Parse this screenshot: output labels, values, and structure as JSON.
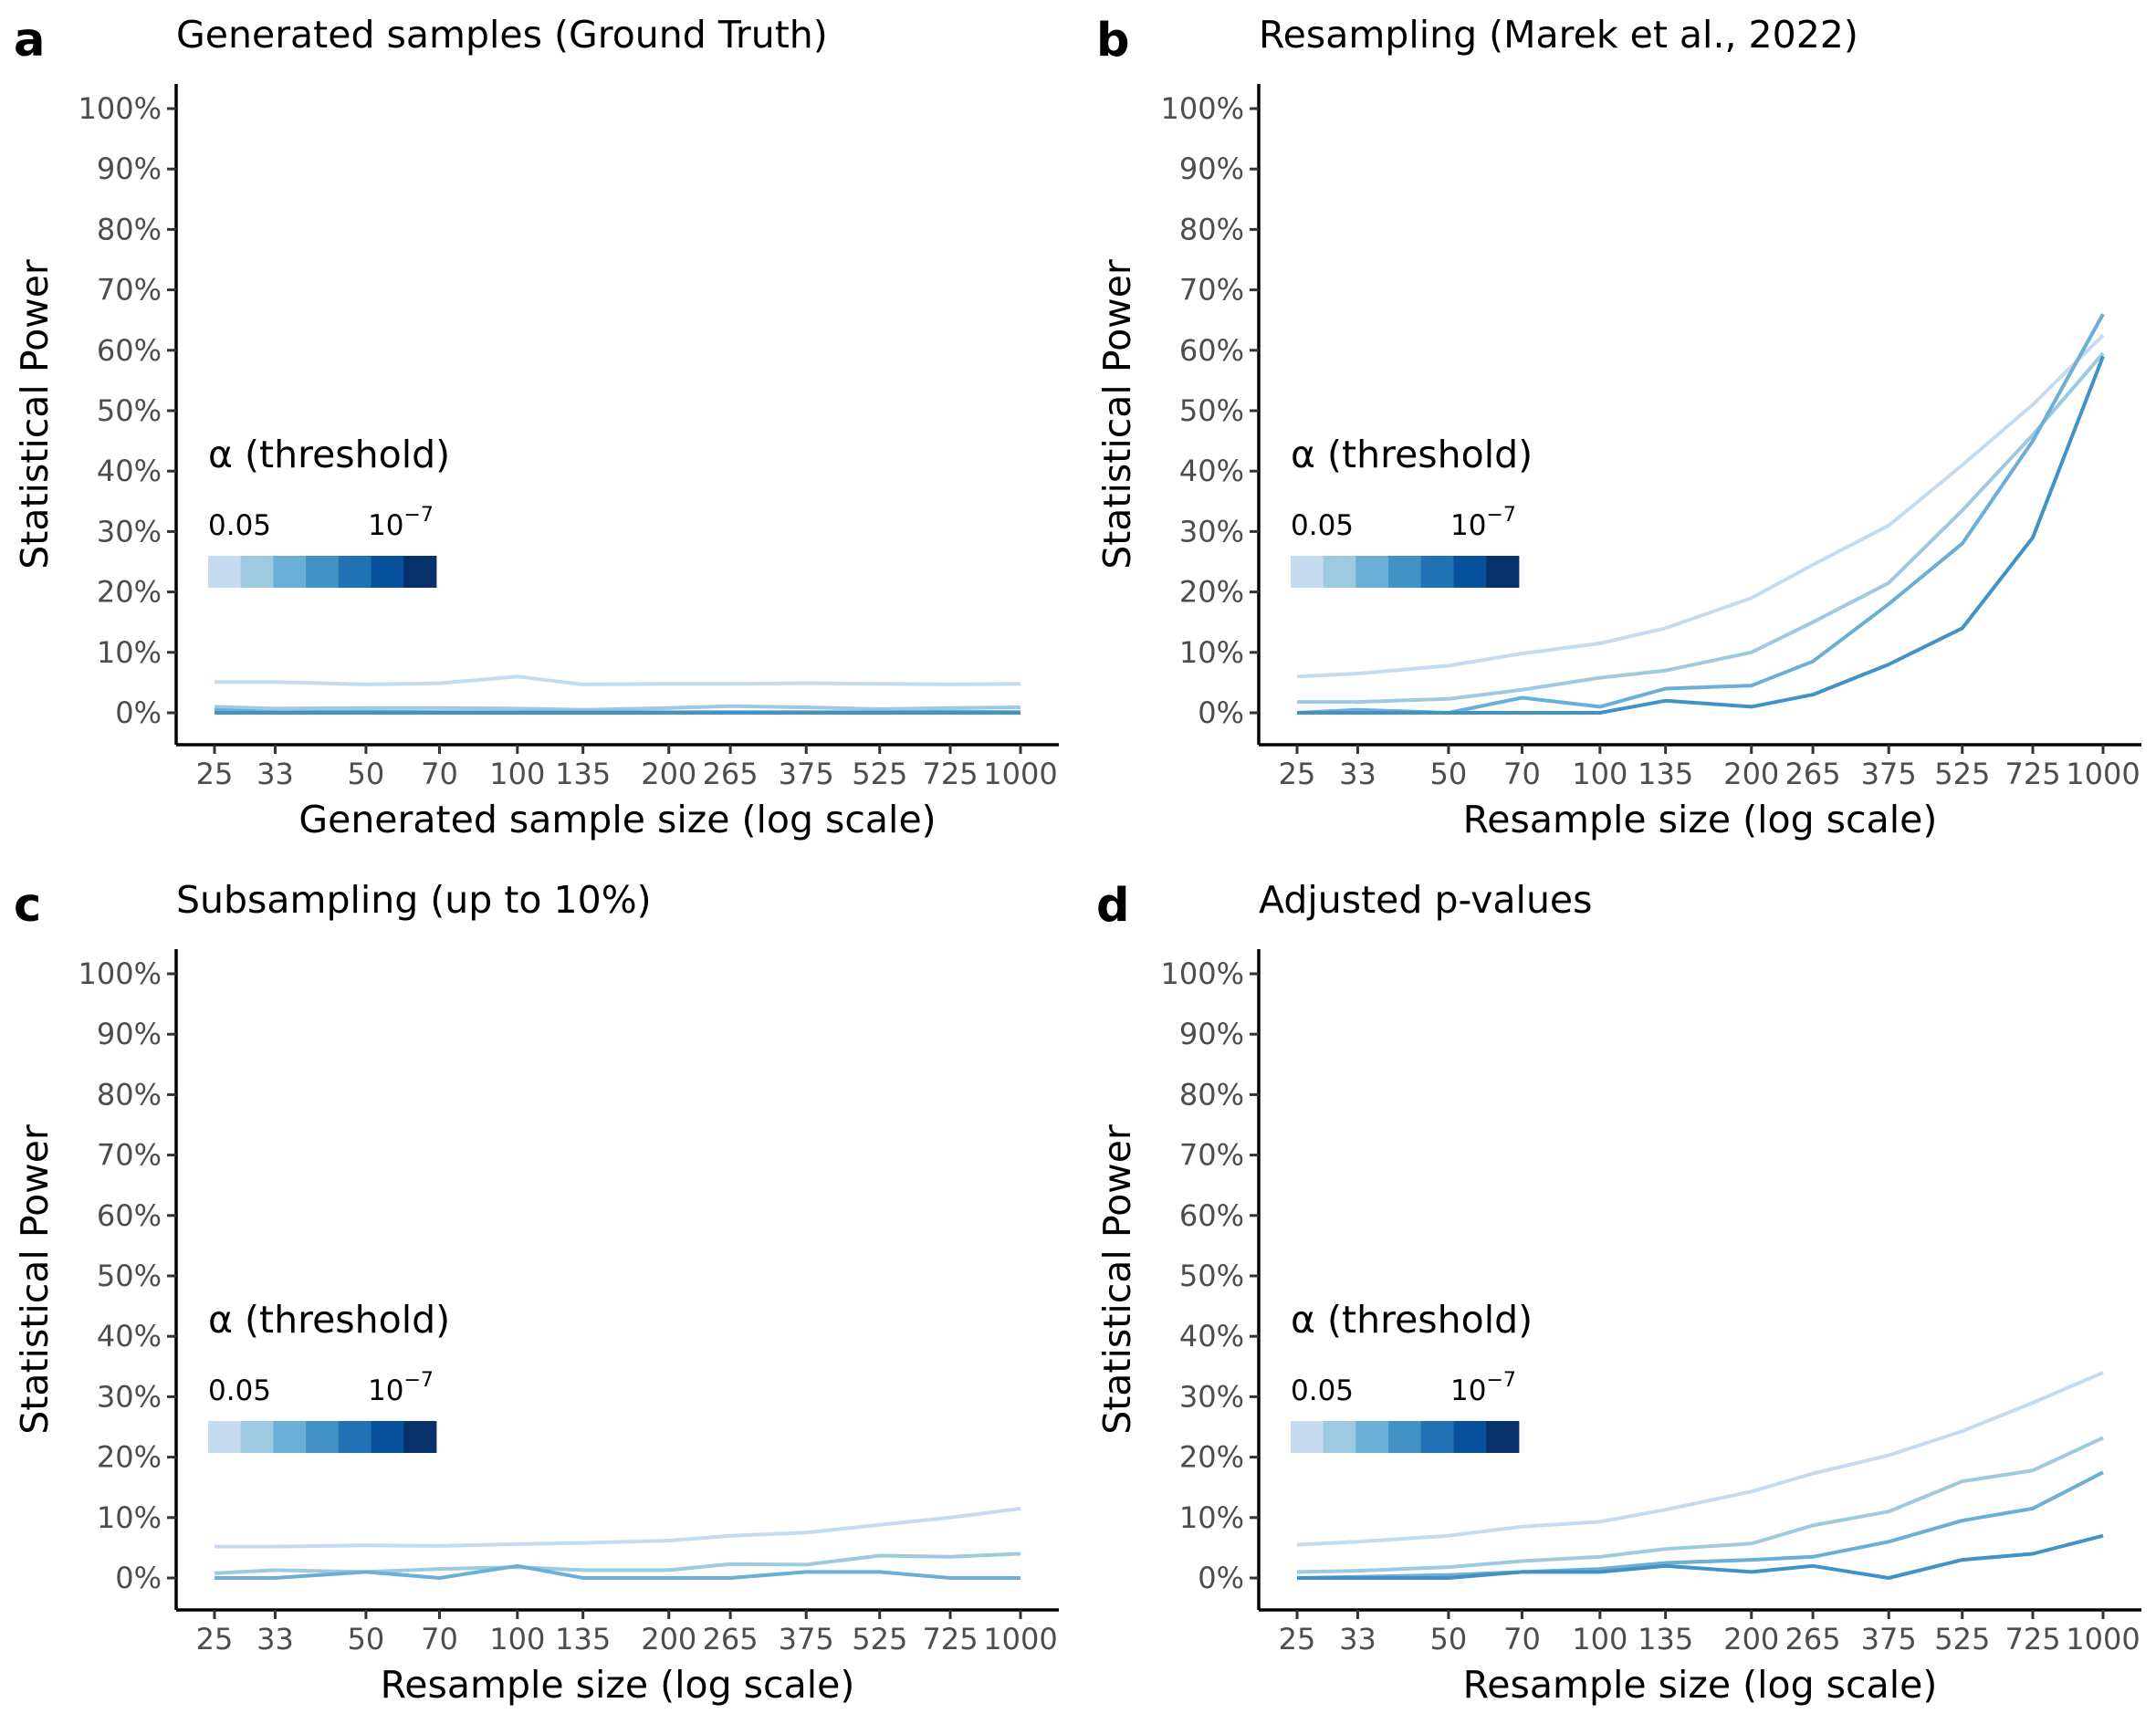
{
  "colors": {
    "legend_scale": [
      "#c6dbef",
      "#9ecae1",
      "#6baed6",
      "#4292c6",
      "#2171b5",
      "#08519c",
      "#08306b"
    ],
    "series": [
      "#c6dbef",
      "#9ecae1",
      "#6baed6",
      "#4292c6"
    ]
  },
  "legend": {
    "title": "α (threshold)",
    "low_label": "0.05",
    "high_label_base": "10",
    "high_label_exp": "−7"
  },
  "chart_data": [
    {
      "panel": "a",
      "type": "line",
      "title": "Generated samples (Ground Truth)",
      "xlabel": "Generated sample size (log scale)",
      "ylabel": "Statistical Power",
      "x_scale": "log",
      "y_format": "percent",
      "x": [
        25,
        33,
        50,
        70,
        100,
        135,
        200,
        265,
        375,
        525,
        725,
        1000
      ],
      "x_ticks": [
        "25",
        "33",
        "50",
        "70",
        "100",
        "135",
        "200",
        "265",
        "375",
        "525",
        "725",
        "1000"
      ],
      "y_ticks": [
        "0%",
        "10%",
        "20%",
        "30%",
        "40%",
        "50%",
        "60%",
        "70%",
        "80%",
        "90%",
        "100%"
      ],
      "ylim": [
        0,
        100
      ],
      "grid": false,
      "legend_position": "center-left",
      "series": [
        {
          "values": [
            5.1,
            5.1,
            4.7,
            4.9,
            6.0,
            4.7,
            4.8,
            4.8,
            4.9,
            4.8,
            4.7,
            4.8
          ]
        },
        {
          "values": [
            1.0,
            0.7,
            0.8,
            0.8,
            0.7,
            0.5,
            0.8,
            1.1,
            0.9,
            0.6,
            0.8,
            0.9
          ]
        },
        {
          "values": [
            0.5,
            0.1,
            0.2,
            0.1,
            0.1,
            0.1,
            0.1,
            0.1,
            0.1,
            0.1,
            0.2,
            0.1
          ]
        },
        {
          "values": [
            0.0,
            0.0,
            0.0,
            0.0,
            0.0,
            0.0,
            0.0,
            0.0,
            0.0,
            0.0,
            0.0,
            0.0
          ]
        }
      ]
    },
    {
      "panel": "b",
      "type": "line",
      "title": "Resampling (Marek et al., 2022)",
      "xlabel": "Resample size (log scale)",
      "ylabel": "Statistical Power",
      "x_scale": "log",
      "y_format": "percent",
      "x": [
        25,
        33,
        50,
        70,
        100,
        135,
        200,
        265,
        375,
        525,
        725,
        1000
      ],
      "x_ticks": [
        "25",
        "33",
        "50",
        "70",
        "100",
        "135",
        "200",
        "265",
        "375",
        "525",
        "725",
        "1000"
      ],
      "y_ticks": [
        "0%",
        "10%",
        "20%",
        "30%",
        "40%",
        "50%",
        "60%",
        "70%",
        "80%",
        "90%",
        "100%"
      ],
      "ylim": [
        0,
        100
      ],
      "grid": false,
      "legend_position": "center-left",
      "series": [
        {
          "values": [
            6.0,
            6.5,
            7.8,
            9.8,
            11.5,
            14.0,
            19.0,
            24.5,
            31.0,
            41.0,
            51.0,
            62.5
          ]
        },
        {
          "values": [
            1.8,
            1.8,
            2.3,
            3.8,
            5.8,
            7.0,
            10.0,
            15.0,
            21.5,
            33.5,
            46.0,
            59.5
          ]
        },
        {
          "values": [
            0.0,
            0.5,
            0.0,
            2.5,
            1.0,
            4.0,
            4.5,
            8.5,
            18.0,
            28.0,
            45.0,
            66.0
          ]
        },
        {
          "values": [
            0.0,
            0.0,
            0.0,
            0.0,
            0.0,
            2.0,
            1.0,
            3.0,
            8.0,
            14.0,
            29.0,
            59.0
          ]
        }
      ]
    },
    {
      "panel": "c",
      "type": "line",
      "title": "Subsampling (up to 10%)",
      "xlabel": "Resample size (log scale)",
      "ylabel": "Statistical Power",
      "x_scale": "log",
      "y_format": "percent",
      "x": [
        25,
        33,
        50,
        70,
        100,
        135,
        200,
        265,
        375,
        525,
        725,
        1000
      ],
      "x_ticks": [
        "25",
        "33",
        "50",
        "70",
        "100",
        "135",
        "200",
        "265",
        "375",
        "525",
        "725",
        "1000"
      ],
      "y_ticks": [
        "0%",
        "10%",
        "20%",
        "30%",
        "40%",
        "50%",
        "60%",
        "70%",
        "80%",
        "90%",
        "100%"
      ],
      "ylim": [
        0,
        100
      ],
      "grid": false,
      "legend_position": "center-left",
      "series": [
        {
          "values": [
            5.2,
            5.2,
            5.4,
            5.3,
            5.6,
            5.8,
            6.2,
            7.0,
            7.5,
            8.8,
            10.0,
            11.5
          ]
        },
        {
          "values": [
            0.8,
            1.3,
            1.0,
            1.5,
            1.8,
            1.3,
            1.3,
            2.3,
            2.2,
            3.7,
            3.5,
            4.0
          ]
        },
        {
          "values": [
            0.0,
            0.0,
            1.0,
            0.0,
            2.0,
            0.0,
            0.0,
            0.0,
            1.0,
            1.0,
            0.0,
            0.0
          ]
        }
      ]
    },
    {
      "panel": "d",
      "type": "line",
      "title": "Adjusted p-values",
      "xlabel": "Resample size (log scale)",
      "ylabel": "Statistical Power",
      "x_scale": "log",
      "y_format": "percent",
      "x": [
        25,
        33,
        50,
        70,
        100,
        135,
        200,
        265,
        375,
        525,
        725,
        1000
      ],
      "x_ticks": [
        "25",
        "33",
        "50",
        "70",
        "100",
        "135",
        "200",
        "265",
        "375",
        "525",
        "725",
        "1000"
      ],
      "y_ticks": [
        "0%",
        "10%",
        "20%",
        "30%",
        "40%",
        "50%",
        "60%",
        "70%",
        "80%",
        "90%",
        "100%"
      ],
      "ylim": [
        0,
        100
      ],
      "grid": false,
      "legend_position": "center-left",
      "series": [
        {
          "values": [
            5.5,
            6.0,
            7.0,
            8.5,
            9.3,
            11.3,
            14.3,
            17.3,
            20.3,
            24.3,
            29.0,
            34.0
          ]
        },
        {
          "values": [
            1.0,
            1.2,
            1.8,
            2.8,
            3.5,
            4.8,
            5.7,
            8.7,
            11.0,
            16.0,
            17.8,
            23.2
          ]
        },
        {
          "values": [
            0.0,
            0.2,
            0.5,
            1.0,
            1.5,
            2.5,
            3.0,
            3.5,
            6.0,
            9.5,
            11.5,
            17.5
          ]
        },
        {
          "values": [
            0.0,
            0.0,
            0.0,
            1.0,
            1.0,
            2.0,
            1.0,
            2.0,
            0.0,
            3.0,
            4.0,
            7.0
          ]
        }
      ]
    }
  ]
}
